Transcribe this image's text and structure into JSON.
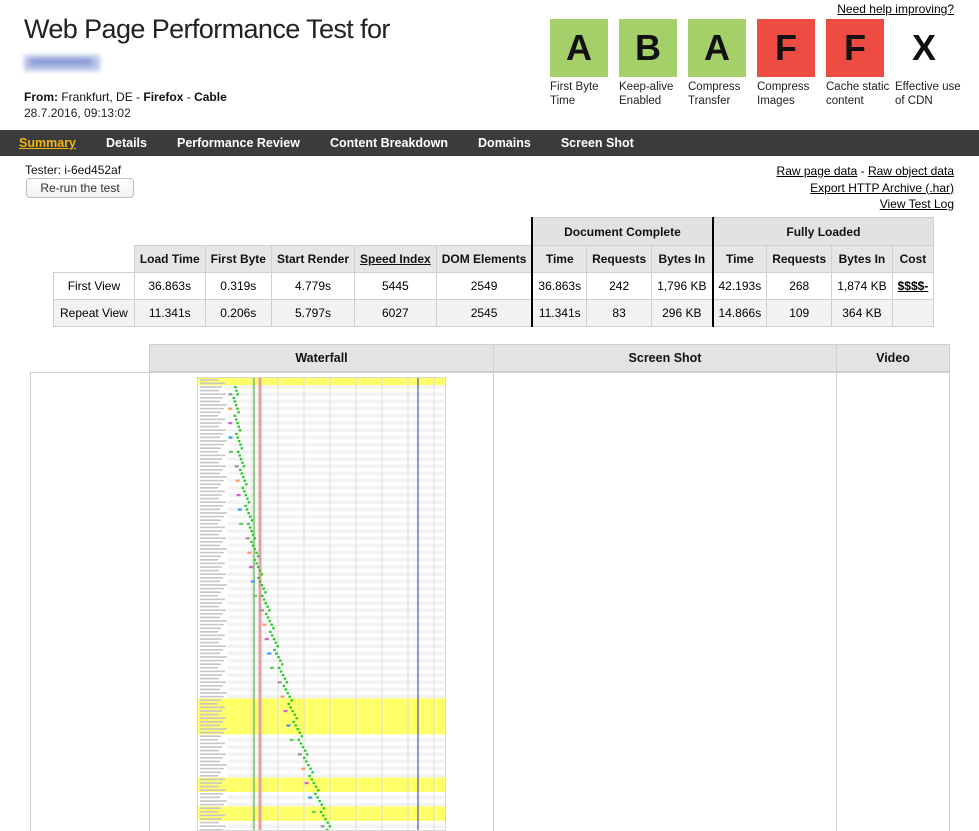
{
  "header": {
    "help_link": "Need help improving?",
    "title": "Web Page Performance Test for",
    "from_label": "From:",
    "location": "Frankfurt, DE",
    "browser": "Firefox",
    "connection": "Cable",
    "datetime": "28.7.2016, 09:13:02"
  },
  "grades": [
    {
      "letter": "A",
      "label": "First Byte Time",
      "status": "green"
    },
    {
      "letter": "B",
      "label": "Keep-alive Enabled",
      "status": "green"
    },
    {
      "letter": "A",
      "label": "Compress Transfer",
      "status": "green"
    },
    {
      "letter": "F",
      "label": "Compress Images",
      "status": "red"
    },
    {
      "letter": "F",
      "label": "Cache static content",
      "status": "red"
    },
    {
      "letter": "X",
      "label": "Effective use of CDN",
      "status": "none"
    }
  ],
  "nav": {
    "items": [
      "Summary",
      "Details",
      "Performance Review",
      "Content Breakdown",
      "Domains",
      "Screen Shot"
    ],
    "active": "Summary"
  },
  "tester": {
    "label": "Tester: i-6ed452af",
    "rerun_label": "Re-run the test"
  },
  "links": {
    "raw_page": "Raw page data",
    "raw_object": "Raw object data",
    "export_har": "Export HTTP Archive (.har)",
    "test_log": "View Test Log"
  },
  "results": {
    "group_doc": "Document Complete",
    "group_full": "Fully Loaded",
    "columns": [
      "Load Time",
      "First Byte",
      "Start Render",
      "Speed Index",
      "DOM Elements",
      "Time",
      "Requests",
      "Bytes In",
      "Time",
      "Requests",
      "Bytes In",
      "Cost"
    ],
    "rows": [
      {
        "label": "First View",
        "cells": [
          "36.863s",
          "0.319s",
          "4.779s",
          "5445",
          "2549",
          "36.863s",
          "242",
          "1,796 KB",
          "42.193s",
          "268",
          "1,874 KB",
          "$$$$-"
        ]
      },
      {
        "label": "Repeat View",
        "cells": [
          "11.341s",
          "0.206s",
          "5.797s",
          "6027",
          "2545",
          "11.341s",
          "83",
          "296 KB",
          "14.866s",
          "109",
          "364 KB",
          ""
        ]
      }
    ]
  },
  "lower": {
    "waterfall": "Waterfall",
    "screenshot": "Screen Shot",
    "video": "Video"
  },
  "colors": {
    "grade_green": "#a5d069",
    "grade_red": "#ee4c43",
    "nav_bg": "#3b3b3b",
    "nav_active": "#f5b50f",
    "waterfall_highlight": "#ffff66"
  }
}
